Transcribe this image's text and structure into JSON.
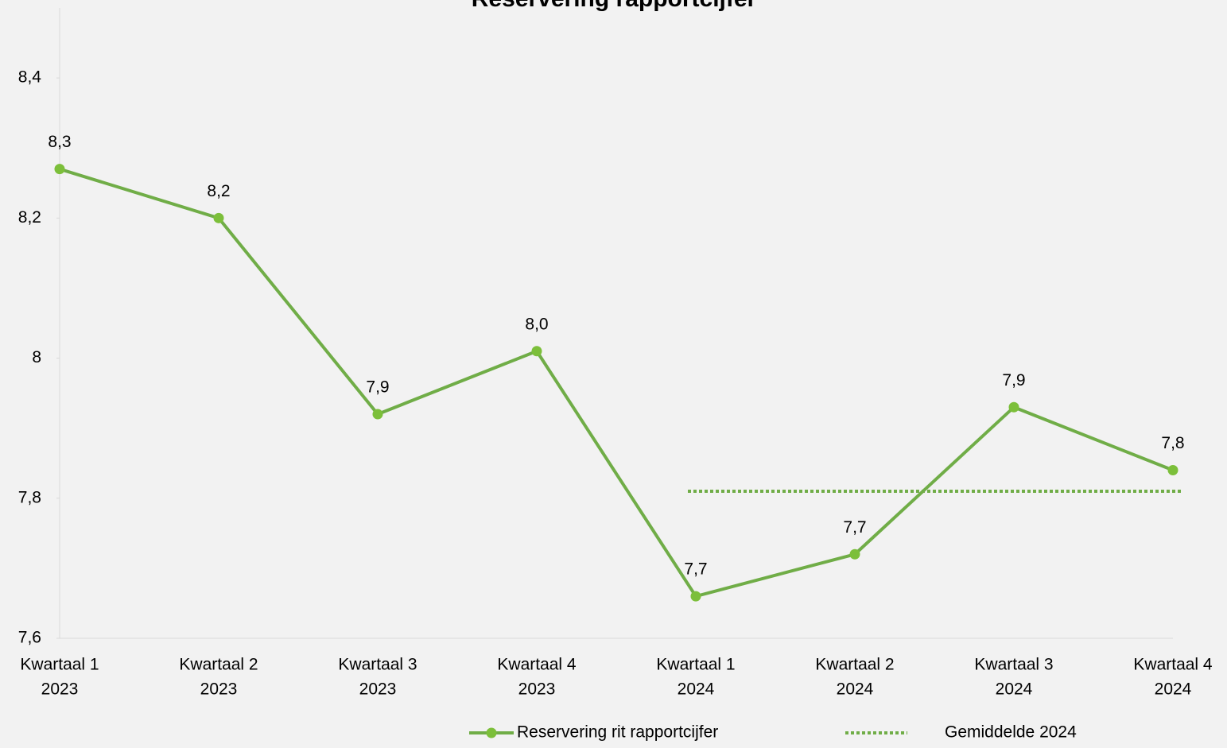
{
  "chart_data": {
    "type": "line",
    "title": "Reservering rapportcijfer",
    "categories": [
      [
        "Kwartaal 1",
        "2023"
      ],
      [
        "Kwartaal 2",
        "2023"
      ],
      [
        "Kwartaal 3",
        "2023"
      ],
      [
        "Kwartaal 4",
        "2023"
      ],
      [
        "Kwartaal 1",
        "2024"
      ],
      [
        "Kwartaal 2",
        "2024"
      ],
      [
        "Kwartaal 3",
        "2024"
      ],
      [
        "Kwartaal 4",
        "2024"
      ]
    ],
    "series": [
      {
        "name": "Reservering rit rapportcijfer",
        "color": "#70ad47",
        "marker_color": "#7cbf3a",
        "values": [
          8.27,
          8.2,
          7.92,
          8.01,
          7.66,
          7.72,
          7.93,
          7.84
        ],
        "value_labels": [
          "8,3",
          "8,2",
          "7,9",
          "8,0",
          "7,7",
          "7,7",
          "7,9",
          "7,8"
        ]
      },
      {
        "name": "Gemiddelde 2024",
        "color": "#70ad47",
        "dashed": true,
        "values": [
          null,
          null,
          null,
          null,
          7.81,
          7.81,
          7.81,
          7.81
        ]
      }
    ],
    "ylim": [
      7.6,
      8.5
    ],
    "yticks": [
      {
        "value": 7.6,
        "label": "7,6"
      },
      {
        "value": 7.8,
        "label": "7,8"
      },
      8,
      {
        "value": 8.2,
        "label": "8,2"
      },
      {
        "value": 8.4,
        "label": "8,4"
      }
    ],
    "grid": false,
    "legend": "bottom"
  }
}
